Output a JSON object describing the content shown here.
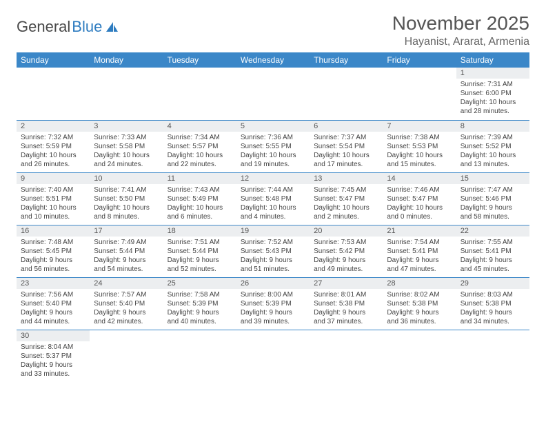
{
  "logo": {
    "text1": "General",
    "text2": "Blue",
    "icon_color": "#2e7cc0"
  },
  "title": "November 2025",
  "location": "Hayanist, Ararat, Armenia",
  "header_bg": "#3b87c8",
  "header_fg": "#ffffff",
  "daynum_bg": "#eceef0",
  "border_color": "#3b87c8",
  "weekdays": [
    "Sunday",
    "Monday",
    "Tuesday",
    "Wednesday",
    "Thursday",
    "Friday",
    "Saturday"
  ],
  "weeks": [
    [
      null,
      null,
      null,
      null,
      null,
      null,
      {
        "n": "1",
        "sr": "Sunrise: 7:31 AM",
        "ss": "Sunset: 6:00 PM",
        "dl": "Daylight: 10 hours and 28 minutes."
      }
    ],
    [
      {
        "n": "2",
        "sr": "Sunrise: 7:32 AM",
        "ss": "Sunset: 5:59 PM",
        "dl": "Daylight: 10 hours and 26 minutes."
      },
      {
        "n": "3",
        "sr": "Sunrise: 7:33 AM",
        "ss": "Sunset: 5:58 PM",
        "dl": "Daylight: 10 hours and 24 minutes."
      },
      {
        "n": "4",
        "sr": "Sunrise: 7:34 AM",
        "ss": "Sunset: 5:57 PM",
        "dl": "Daylight: 10 hours and 22 minutes."
      },
      {
        "n": "5",
        "sr": "Sunrise: 7:36 AM",
        "ss": "Sunset: 5:55 PM",
        "dl": "Daylight: 10 hours and 19 minutes."
      },
      {
        "n": "6",
        "sr": "Sunrise: 7:37 AM",
        "ss": "Sunset: 5:54 PM",
        "dl": "Daylight: 10 hours and 17 minutes."
      },
      {
        "n": "7",
        "sr": "Sunrise: 7:38 AM",
        "ss": "Sunset: 5:53 PM",
        "dl": "Daylight: 10 hours and 15 minutes."
      },
      {
        "n": "8",
        "sr": "Sunrise: 7:39 AM",
        "ss": "Sunset: 5:52 PM",
        "dl": "Daylight: 10 hours and 13 minutes."
      }
    ],
    [
      {
        "n": "9",
        "sr": "Sunrise: 7:40 AM",
        "ss": "Sunset: 5:51 PM",
        "dl": "Daylight: 10 hours and 10 minutes."
      },
      {
        "n": "10",
        "sr": "Sunrise: 7:41 AM",
        "ss": "Sunset: 5:50 PM",
        "dl": "Daylight: 10 hours and 8 minutes."
      },
      {
        "n": "11",
        "sr": "Sunrise: 7:43 AM",
        "ss": "Sunset: 5:49 PM",
        "dl": "Daylight: 10 hours and 6 minutes."
      },
      {
        "n": "12",
        "sr": "Sunrise: 7:44 AM",
        "ss": "Sunset: 5:48 PM",
        "dl": "Daylight: 10 hours and 4 minutes."
      },
      {
        "n": "13",
        "sr": "Sunrise: 7:45 AM",
        "ss": "Sunset: 5:47 PM",
        "dl": "Daylight: 10 hours and 2 minutes."
      },
      {
        "n": "14",
        "sr": "Sunrise: 7:46 AM",
        "ss": "Sunset: 5:47 PM",
        "dl": "Daylight: 10 hours and 0 minutes."
      },
      {
        "n": "15",
        "sr": "Sunrise: 7:47 AM",
        "ss": "Sunset: 5:46 PM",
        "dl": "Daylight: 9 hours and 58 minutes."
      }
    ],
    [
      {
        "n": "16",
        "sr": "Sunrise: 7:48 AM",
        "ss": "Sunset: 5:45 PM",
        "dl": "Daylight: 9 hours and 56 minutes."
      },
      {
        "n": "17",
        "sr": "Sunrise: 7:49 AM",
        "ss": "Sunset: 5:44 PM",
        "dl": "Daylight: 9 hours and 54 minutes."
      },
      {
        "n": "18",
        "sr": "Sunrise: 7:51 AM",
        "ss": "Sunset: 5:44 PM",
        "dl": "Daylight: 9 hours and 52 minutes."
      },
      {
        "n": "19",
        "sr": "Sunrise: 7:52 AM",
        "ss": "Sunset: 5:43 PM",
        "dl": "Daylight: 9 hours and 51 minutes."
      },
      {
        "n": "20",
        "sr": "Sunrise: 7:53 AM",
        "ss": "Sunset: 5:42 PM",
        "dl": "Daylight: 9 hours and 49 minutes."
      },
      {
        "n": "21",
        "sr": "Sunrise: 7:54 AM",
        "ss": "Sunset: 5:41 PM",
        "dl": "Daylight: 9 hours and 47 minutes."
      },
      {
        "n": "22",
        "sr": "Sunrise: 7:55 AM",
        "ss": "Sunset: 5:41 PM",
        "dl": "Daylight: 9 hours and 45 minutes."
      }
    ],
    [
      {
        "n": "23",
        "sr": "Sunrise: 7:56 AM",
        "ss": "Sunset: 5:40 PM",
        "dl": "Daylight: 9 hours and 44 minutes."
      },
      {
        "n": "24",
        "sr": "Sunrise: 7:57 AM",
        "ss": "Sunset: 5:40 PM",
        "dl": "Daylight: 9 hours and 42 minutes."
      },
      {
        "n": "25",
        "sr": "Sunrise: 7:58 AM",
        "ss": "Sunset: 5:39 PM",
        "dl": "Daylight: 9 hours and 40 minutes."
      },
      {
        "n": "26",
        "sr": "Sunrise: 8:00 AM",
        "ss": "Sunset: 5:39 PM",
        "dl": "Daylight: 9 hours and 39 minutes."
      },
      {
        "n": "27",
        "sr": "Sunrise: 8:01 AM",
        "ss": "Sunset: 5:38 PM",
        "dl": "Daylight: 9 hours and 37 minutes."
      },
      {
        "n": "28",
        "sr": "Sunrise: 8:02 AM",
        "ss": "Sunset: 5:38 PM",
        "dl": "Daylight: 9 hours and 36 minutes."
      },
      {
        "n": "29",
        "sr": "Sunrise: 8:03 AM",
        "ss": "Sunset: 5:38 PM",
        "dl": "Daylight: 9 hours and 34 minutes."
      }
    ],
    [
      {
        "n": "30",
        "sr": "Sunrise: 8:04 AM",
        "ss": "Sunset: 5:37 PM",
        "dl": "Daylight: 9 hours and 33 minutes."
      },
      null,
      null,
      null,
      null,
      null,
      null
    ]
  ]
}
